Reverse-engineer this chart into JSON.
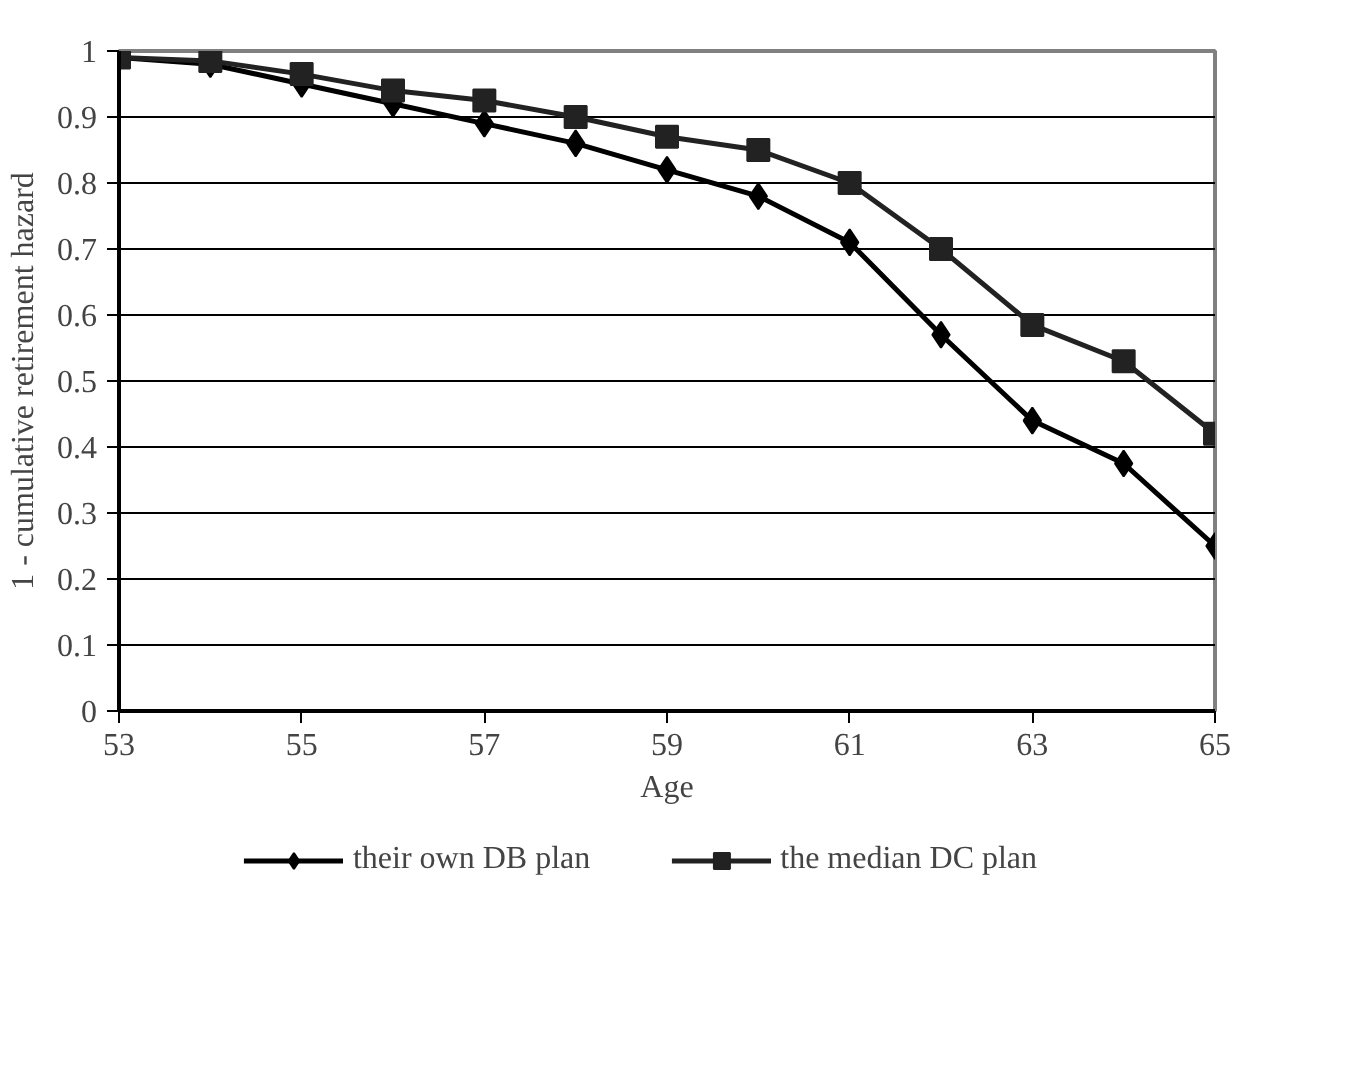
{
  "chart_data": {
    "type": "line",
    "xlabel": "Age",
    "ylabel": "1 - cumulative retirement hazard",
    "x": [
      53,
      54,
      55,
      56,
      57,
      58,
      59,
      60,
      61,
      62,
      63,
      64,
      65
    ],
    "series": [
      {
        "name": "their own DB plan",
        "color": "#000000",
        "marker": "diamond",
        "values": [
          0.99,
          0.98,
          0.95,
          0.92,
          0.89,
          0.86,
          0.82,
          0.78,
          0.71,
          0.57,
          0.44,
          0.375,
          0.25
        ]
      },
      {
        "name": "the median DC plan",
        "color": "#222222",
        "marker": "square",
        "values": [
          0.99,
          0.985,
          0.965,
          0.94,
          0.925,
          0.9,
          0.87,
          0.85,
          0.8,
          0.7,
          0.585,
          0.53,
          0.42
        ]
      }
    ],
    "xlim": [
      53,
      65
    ],
    "xticks": [
      53,
      55,
      57,
      59,
      61,
      63,
      65
    ],
    "ylim": [
      0,
      1
    ],
    "yticks": [
      0,
      0.1,
      0.2,
      0.3,
      0.4,
      0.5,
      0.6,
      0.7,
      0.8,
      0.9,
      1
    ],
    "grid": "y",
    "legend": "bottom",
    "line_style": "solid"
  }
}
